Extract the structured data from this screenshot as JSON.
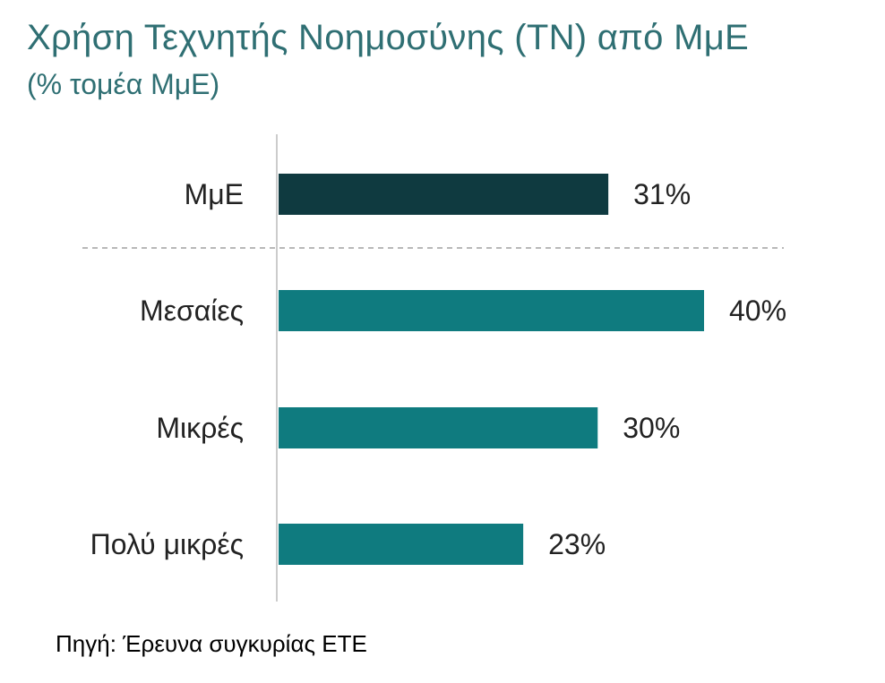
{
  "chart_data": {
    "type": "bar",
    "orientation": "horizontal",
    "title": "Χρήση Τεχνητής Νοημοσύνης (ΤΝ) από ΜμΕ",
    "subtitle": "(% τομέα ΜμΕ)",
    "categories": [
      "ΜμΕ",
      "Μεσαίες",
      "Μικρές",
      "Πολύ μικρές"
    ],
    "values": [
      31,
      40,
      30,
      23
    ],
    "value_labels": [
      "31%",
      "40%",
      "30%",
      "23%"
    ],
    "bar_colors": [
      "#0f3a40",
      "#0f7b7f",
      "#0f7b7f",
      "#0f7b7f"
    ],
    "xlim": [
      0,
      40
    ],
    "grid": false,
    "legend": "none",
    "separator_after_first": true
  },
  "source": "Πηγή: Έρευνα συγκυρίας ΕΤΕ",
  "colors": {
    "title": "#2f6f73",
    "axis": "#cccccc",
    "separator": "#a0a0a0"
  }
}
